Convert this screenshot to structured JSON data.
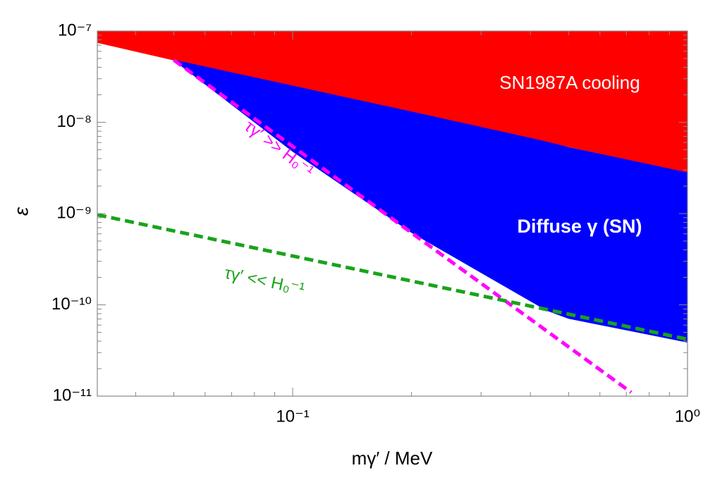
{
  "chart_data": {
    "type": "fill_between",
    "x_label": "mγ′ / MeV",
    "y_label": "ε",
    "xlog": true,
    "ylog": true,
    "xlim": [
      0.032,
      1
    ],
    "ylim": [
      1e-11,
      1e-07
    ],
    "xticks": [
      {
        "value": 0.1,
        "label": "10⁻¹"
      },
      {
        "value": 1,
        "label": "10⁰"
      }
    ],
    "yticks": [
      {
        "value": 1e-11,
        "label": "10⁻¹¹"
      },
      {
        "value": 1e-10,
        "label": "10⁻¹⁰"
      },
      {
        "value": 1e-09,
        "label": "10⁻⁹"
      },
      {
        "value": 1e-08,
        "label": "10⁻⁸"
      },
      {
        "value": 1e-07,
        "label": "10⁻⁷"
      }
    ],
    "xminorticks": [
      0.04,
      0.05,
      0.06,
      0.07,
      0.08,
      0.09,
      0.2,
      0.3,
      0.4,
      0.5,
      0.6,
      0.7,
      0.8,
      0.9
    ],
    "yminorticks": [
      2e-11,
      3e-11,
      4e-11,
      5e-11,
      6e-11,
      7e-11,
      8e-11,
      9e-11,
      2e-10,
      3e-10,
      4e-10,
      5e-10,
      6e-10,
      7e-10,
      8e-10,
      9e-10,
      2e-09,
      3e-09,
      4e-09,
      5e-09,
      6e-09,
      7e-09,
      8e-09,
      9e-09,
      2e-08,
      3e-08,
      4e-08,
      5e-08,
      6e-08,
      7e-08,
      8e-08,
      9e-08
    ],
    "series": [
      {
        "name": "SN1987A cooling",
        "color": "#ff0000",
        "x": [
          0.032,
          0.05,
          1
        ],
        "lower": [
          7.5e-08,
          4.8e-08,
          2.8e-09
        ],
        "upper": [
          1e-07,
          1e-07,
          1e-07
        ]
      },
      {
        "name": "Diffuse γ (SN)",
        "color": "#0000ff",
        "x": [
          0.05,
          0.1,
          0.2,
          0.44,
          0.5,
          1
        ],
        "lower": [
          4.8e-08,
          4.8e-09,
          6.2e-10,
          8.7e-11,
          7.1e-11,
          3.9e-11
        ],
        "upper": [
          4.8e-08,
          2.5e-08,
          1.3e-08,
          6.1e-09,
          5.3e-09,
          2.8e-09
        ]
      },
      {
        "name": "τγ′ >> H₀⁻¹",
        "color": "#ff00ff",
        "style": "dashed",
        "x": [
          0.05,
          0.72
        ],
        "values": [
          4.8e-08,
          1.1e-11
        ]
      },
      {
        "name": "τγ′ << H₀⁻¹",
        "color": "#1aa31a",
        "style": "dashed",
        "x": [
          0.032,
          1
        ],
        "values": [
          9.7e-10,
          4.2e-11
        ]
      }
    ]
  }
}
